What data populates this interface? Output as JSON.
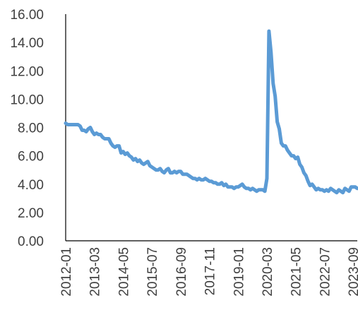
{
  "chart_data": {
    "type": "line",
    "title": "",
    "xlabel": "",
    "ylabel": "",
    "ylim": [
      0,
      16
    ],
    "y_ticks": [
      "0.00",
      "2.00",
      "4.00",
      "6.00",
      "8.00",
      "10.00",
      "12.00",
      "14.00",
      "16.00"
    ],
    "x_tick_labels": [
      "2012-01",
      "2013-03",
      "2014-05",
      "2015-07",
      "2016-09",
      "2017-11",
      "2019-01",
      "2020-03",
      "2021-05",
      "2022-07",
      "2023-09"
    ],
    "grid": false,
    "legend": "none",
    "series": [
      {
        "color": "#5B9BD5",
        "x": [
          "2012-01",
          "2012-02",
          "2012-03",
          "2012-04",
          "2012-05",
          "2012-06",
          "2012-07",
          "2012-08",
          "2012-09",
          "2012-10",
          "2012-11",
          "2012-12",
          "2013-01",
          "2013-02",
          "2013-03",
          "2013-04",
          "2013-05",
          "2013-06",
          "2013-07",
          "2013-08",
          "2013-09",
          "2013-10",
          "2013-11",
          "2013-12",
          "2014-01",
          "2014-02",
          "2014-03",
          "2014-04",
          "2014-05",
          "2014-06",
          "2014-07",
          "2014-08",
          "2014-09",
          "2014-10",
          "2014-11",
          "2014-12",
          "2015-01",
          "2015-02",
          "2015-03",
          "2015-04",
          "2015-05",
          "2015-06",
          "2015-07",
          "2015-08",
          "2015-09",
          "2015-10",
          "2015-11",
          "2015-12",
          "2016-01",
          "2016-02",
          "2016-03",
          "2016-04",
          "2016-05",
          "2016-06",
          "2016-07",
          "2016-08",
          "2016-09",
          "2016-10",
          "2016-11",
          "2016-12",
          "2017-01",
          "2017-02",
          "2017-03",
          "2017-04",
          "2017-05",
          "2017-06",
          "2017-07",
          "2017-08",
          "2017-09",
          "2017-10",
          "2017-11",
          "2017-12",
          "2018-01",
          "2018-02",
          "2018-03",
          "2018-04",
          "2018-05",
          "2018-06",
          "2018-07",
          "2018-08",
          "2018-09",
          "2018-10",
          "2018-11",
          "2018-12",
          "2019-01",
          "2019-02",
          "2019-03",
          "2019-04",
          "2019-05",
          "2019-06",
          "2019-07",
          "2019-08",
          "2019-09",
          "2019-10",
          "2019-11",
          "2019-12",
          "2020-01",
          "2020-02",
          "2020-03",
          "2020-04",
          "2020-05",
          "2020-06",
          "2020-07",
          "2020-08",
          "2020-09",
          "2020-10",
          "2020-11",
          "2020-12",
          "2021-01",
          "2021-02",
          "2021-03",
          "2021-04",
          "2021-05",
          "2021-06",
          "2021-07",
          "2021-08",
          "2021-09",
          "2021-10",
          "2021-11",
          "2021-12",
          "2022-01",
          "2022-02",
          "2022-03",
          "2022-04",
          "2022-05",
          "2022-06",
          "2022-07",
          "2022-08",
          "2022-09",
          "2022-10",
          "2022-11",
          "2022-12",
          "2023-01",
          "2023-02",
          "2023-03",
          "2023-04",
          "2023-05",
          "2023-06",
          "2023-07",
          "2023-08",
          "2023-09",
          "2023-10",
          "2023-11"
        ],
        "values": [
          8.3,
          8.2,
          8.2,
          8.2,
          8.2,
          8.2,
          8.2,
          8.1,
          7.8,
          7.8,
          7.7,
          7.9,
          8.0,
          7.7,
          7.5,
          7.6,
          7.5,
          7.5,
          7.3,
          7.2,
          7.2,
          7.2,
          6.9,
          6.7,
          6.6,
          6.7,
          6.7,
          6.2,
          6.3,
          6.1,
          6.2,
          6.0,
          5.9,
          5.7,
          5.8,
          5.6,
          5.7,
          5.5,
          5.4,
          5.5,
          5.6,
          5.3,
          5.2,
          5.1,
          5.0,
          5.0,
          5.1,
          4.9,
          4.8,
          5.0,
          5.1,
          4.8,
          4.8,
          4.9,
          4.8,
          4.9,
          4.9,
          4.7,
          4.7,
          4.7,
          4.6,
          4.5,
          4.4,
          4.4,
          4.3,
          4.4,
          4.3,
          4.3,
          4.4,
          4.3,
          4.2,
          4.2,
          4.1,
          4.1,
          4.0,
          4.0,
          4.1,
          3.9,
          4.0,
          3.8,
          3.8,
          3.8,
          3.7,
          3.8,
          3.8,
          3.9,
          4.0,
          3.8,
          3.7,
          3.7,
          3.6,
          3.7,
          3.6,
          3.5,
          3.6,
          3.6,
          3.6,
          3.5,
          4.4,
          14.8,
          13.3,
          11.1,
          10.2,
          8.4,
          7.9,
          6.9,
          6.7,
          6.7,
          6.4,
          6.2,
          6.0,
          6.0,
          5.8,
          5.9,
          5.4,
          5.2,
          4.8,
          4.6,
          4.2,
          3.9,
          4.0,
          3.8,
          3.6,
          3.7,
          3.6,
          3.6,
          3.5,
          3.6,
          3.5,
          3.7,
          3.6,
          3.5,
          3.4,
          3.6,
          3.5,
          3.4,
          3.7,
          3.6,
          3.5,
          3.8,
          3.8,
          3.8,
          3.7
        ]
      }
    ]
  }
}
